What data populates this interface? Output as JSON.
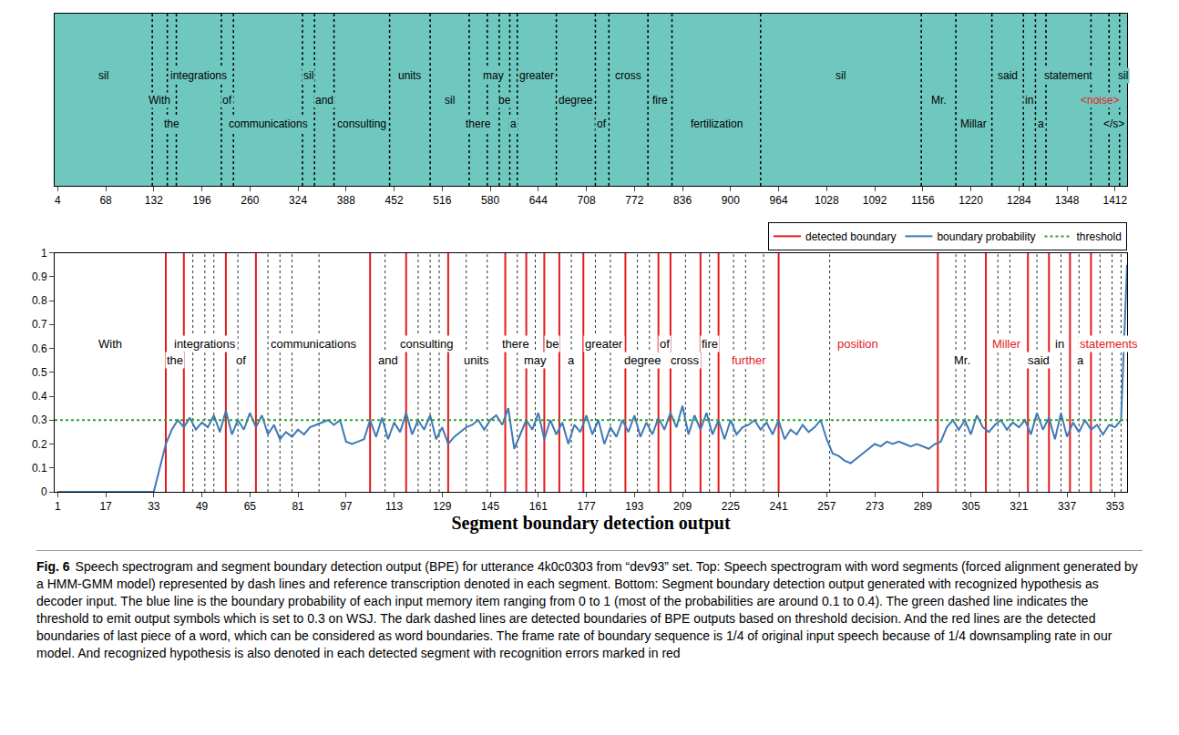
{
  "chart_data": [
    {
      "type": "segments",
      "tick_labels": "x",
      "xlim": [
        0,
        1428
      ],
      "xticks": [
        4,
        68,
        132,
        196,
        260,
        324,
        388,
        452,
        516,
        580,
        644,
        708,
        772,
        836,
        900,
        964,
        1028,
        1092,
        1156,
        1220,
        1284,
        1348,
        1412
      ],
      "labels": [
        "sil",
        "With",
        "the",
        "integrations",
        "of",
        "communications",
        "sil",
        "and",
        "consulting",
        "units",
        "sil",
        "there",
        "may",
        "be",
        "a",
        "greater",
        "degree",
        "of",
        "cross",
        "fire",
        "fertilization",
        "sil",
        "Mr.",
        "Millar",
        "said",
        "in",
        "a",
        "statement",
        "<noise>",
        "</s>",
        "sil"
      ],
      "edges": [
        0,
        130,
        150,
        162,
        222,
        238,
        330,
        346,
        372,
        446,
        500,
        552,
        576,
        592,
        606,
        616,
        668,
        720,
        738,
        790,
        822,
        940,
        1154,
        1200,
        1248,
        1290,
        1306,
        1320,
        1380,
        1404,
        1418,
        1428
      ],
      "colors": [
        "#000000",
        "#000000",
        "#000000",
        "#000000",
        "#000000",
        "#000000",
        "#000000",
        "#000000",
        "#000000",
        "#000000",
        "#000000",
        "#000000",
        "#000000",
        "#000000",
        "#000000",
        "#000000",
        "#000000",
        "#000000",
        "#000000",
        "#000000",
        "#000000",
        "#000000",
        "#000000",
        "#000000",
        "#000000",
        "#000000",
        "#000000",
        "#000000",
        "#e31a1c",
        "#000000",
        "#000000"
      ]
    },
    {
      "type": "line",
      "x_label": "Segment boundary detection output",
      "xlim": [
        0,
        357
      ],
      "xticks": [
        1,
        17,
        33,
        49,
        65,
        81,
        97,
        113,
        129,
        145,
        161,
        177,
        193,
        209,
        225,
        241,
        257,
        273,
        289,
        305,
        321,
        337,
        353
      ],
      "ylim": [
        0,
        1
      ],
      "yticks": [
        0,
        0.1,
        0.2,
        0.3,
        0.4,
        0.5,
        0.6,
        0.7,
        0.8,
        0.9,
        1
      ],
      "legend": "top right",
      "series": [
        {
          "name": "detected boundary",
          "color": "#e31a1c",
          "line_style": "solid",
          "x": [
            37,
            43,
            57,
            67,
            105,
            117,
            131,
            150,
            157,
            163,
            168,
            176,
            190,
            201,
            205,
            215,
            221,
            241,
            294,
            310,
            324,
            331,
            338,
            345
          ]
        },
        {
          "name": "boundary probability",
          "color": "#3d7ab8",
          "line_style": "solid",
          "x": [
            1,
            3,
            5,
            7,
            9,
            11,
            13,
            15,
            17,
            19,
            21,
            23,
            25,
            27,
            29,
            31,
            33,
            35,
            37,
            39,
            41,
            43,
            45,
            47,
            49,
            51,
            53,
            55,
            57,
            59,
            61,
            63,
            65,
            67,
            69,
            71,
            73,
            75,
            77,
            79,
            81,
            83,
            85,
            87,
            89,
            91,
            93,
            95,
            97,
            99,
            101,
            103,
            105,
            107,
            109,
            111,
            113,
            115,
            117,
            119,
            121,
            123,
            125,
            127,
            129,
            131,
            133,
            135,
            137,
            139,
            141,
            143,
            145,
            147,
            149,
            151,
            153,
            155,
            157,
            159,
            161,
            163,
            165,
            167,
            169,
            171,
            173,
            175,
            177,
            179,
            181,
            183,
            185,
            187,
            189,
            191,
            193,
            195,
            197,
            199,
            201,
            203,
            205,
            207,
            209,
            211,
            213,
            215,
            217,
            219,
            221,
            223,
            225,
            227,
            229,
            231,
            233,
            235,
            237,
            239,
            241,
            243,
            245,
            247,
            249,
            251,
            253,
            255,
            257,
            259,
            261,
            263,
            265,
            267,
            269,
            271,
            273,
            275,
            277,
            279,
            281,
            283,
            285,
            287,
            289,
            291,
            293,
            295,
            297,
            299,
            301,
            303,
            305,
            307,
            309,
            311,
            313,
            315,
            317,
            319,
            321,
            323,
            325,
            327,
            329,
            331,
            333,
            335,
            337,
            339,
            341,
            343,
            345,
            347,
            349,
            351,
            353,
            355,
            357
          ],
          "values": [
            0,
            0,
            0,
            0,
            0,
            0,
            0,
            0,
            0,
            0,
            0,
            0,
            0,
            0,
            0,
            0,
            0,
            0.1,
            0.2,
            0.26,
            0.3,
            0.27,
            0.31,
            0.26,
            0.29,
            0.27,
            0.32,
            0.25,
            0.34,
            0.24,
            0.3,
            0.26,
            0.33,
            0.27,
            0.32,
            0.24,
            0.28,
            0.22,
            0.25,
            0.23,
            0.26,
            0.24,
            0.27,
            0.28,
            0.29,
            0.3,
            0.28,
            0.3,
            0.21,
            0.2,
            0.21,
            0.22,
            0.3,
            0.23,
            0.31,
            0.22,
            0.29,
            0.25,
            0.33,
            0.24,
            0.3,
            0.26,
            0.32,
            0.22,
            0.27,
            0.2,
            0.23,
            0.25,
            0.27,
            0.28,
            0.3,
            0.26,
            0.3,
            0.32,
            0.28,
            0.35,
            0.18,
            0.24,
            0.3,
            0.26,
            0.33,
            0.22,
            0.3,
            0.24,
            0.29,
            0.2,
            0.28,
            0.25,
            0.32,
            0.24,
            0.3,
            0.2,
            0.27,
            0.23,
            0.3,
            0.25,
            0.32,
            0.23,
            0.29,
            0.24,
            0.31,
            0.26,
            0.33,
            0.27,
            0.36,
            0.24,
            0.32,
            0.26,
            0.33,
            0.24,
            0.3,
            0.22,
            0.3,
            0.24,
            0.27,
            0.28,
            0.3,
            0.26,
            0.29,
            0.24,
            0.3,
            0.22,
            0.26,
            0.24,
            0.28,
            0.25,
            0.27,
            0.3,
            0.22,
            0.16,
            0.15,
            0.13,
            0.12,
            0.14,
            0.16,
            0.18,
            0.2,
            0.19,
            0.21,
            0.2,
            0.21,
            0.2,
            0.19,
            0.2,
            0.19,
            0.18,
            0.2,
            0.21,
            0.27,
            0.3,
            0.26,
            0.3,
            0.24,
            0.32,
            0.27,
            0.25,
            0.28,
            0.3,
            0.26,
            0.29,
            0.27,
            0.3,
            0.24,
            0.33,
            0.26,
            0.31,
            0.22,
            0.33,
            0.23,
            0.29,
            0.25,
            0.3,
            0.26,
            0.28,
            0.24,
            0.28,
            0.27,
            0.3,
            0.95
          ]
        },
        {
          "name": "threshold",
          "color": "#2ca02c",
          "line_style": "dotted",
          "values": [
            0.3
          ]
        }
      ],
      "piece_boundaries": [
        46,
        50,
        53,
        61,
        71,
        75,
        79,
        88,
        110,
        121,
        125,
        128,
        137,
        144,
        154,
        160,
        172,
        180,
        185,
        194,
        198,
        210,
        218,
        226,
        230,
        236,
        258,
        300,
        303,
        314,
        318,
        327,
        335,
        341,
        348,
        352,
        355
      ],
      "words": {
        "labels": [
          "With",
          "the",
          "integrations",
          "of",
          "communications",
          "and",
          "consulting",
          "units",
          "there",
          "may",
          "be",
          "a",
          "greater",
          "degree",
          "of",
          "cross",
          "fire",
          "further",
          "position",
          "Mr.",
          "Miller",
          "said",
          "in",
          "a",
          "statements"
        ],
        "edges": [
          0,
          37,
          43,
          57,
          67,
          105,
          117,
          131,
          150,
          157,
          163,
          168,
          176,
          190,
          201,
          205,
          215,
          221,
          241,
          294,
          310,
          324,
          331,
          338,
          345,
          357
        ],
        "colors": [
          "#000000",
          "#000000",
          "#000000",
          "#000000",
          "#000000",
          "#000000",
          "#000000",
          "#000000",
          "#000000",
          "#000000",
          "#000000",
          "#000000",
          "#000000",
          "#000000",
          "#000000",
          "#000000",
          "#000000",
          "#e31a1c",
          "#e31a1c",
          "#000000",
          "#e31a1c",
          "#000000",
          "#000000",
          "#000000",
          "#e31a1c"
        ]
      }
    }
  ],
  "caption": {
    "label": "Fig. 6",
    "text": "Speech spectrogram and segment boundary detection output (BPE) for utterance 4k0c0303 from “dev93” set. Top: Speech spectrogram with word segments (forced alignment generated by a HMM-GMM model) represented by dash lines and reference transcription denoted in each segment. Bottom: Segment boundary detection output generated with recognized hypothesis as decoder input. The blue line is the boundary probability of each input memory item ranging from 0 to 1 (most of the probabilities are around 0.1 to 0.4). The green dashed line indicates the threshold to emit output symbols which is set to 0.3 on WSJ. The dark dashed lines are detected boundaries of BPE outputs based on threshold decision. And the red lines are the detected boundaries of last piece of a word, which can be considered as word boundaries. The frame rate of boundary sequence is 1/4 of original input speech because of 1/4 downsampling rate in our model. And recognized hypothesis is also denoted in each detected segment with recognition errors marked in red"
  }
}
